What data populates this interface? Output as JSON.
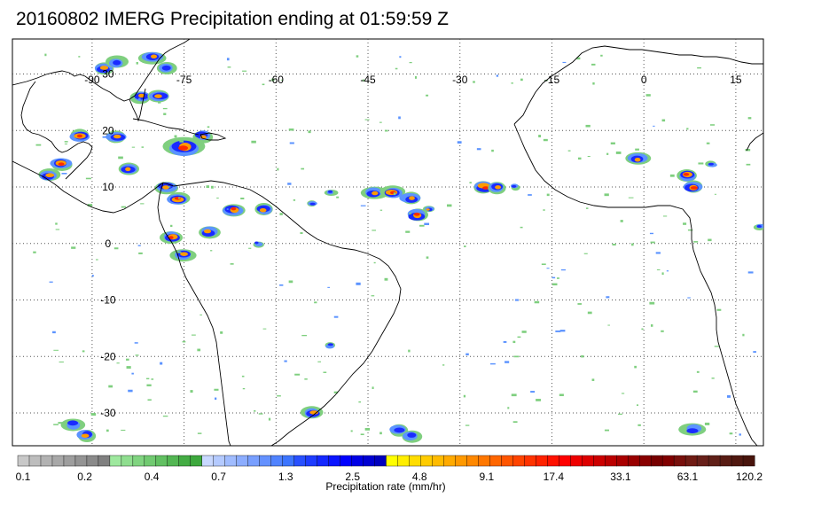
{
  "title": "20160802 IMERG Precipitation ending at 01:59:59 Z",
  "map": {
    "lon_ticks": [
      "-90",
      "-75",
      "-60",
      "-45",
      "-30",
      "-15",
      "0",
      "15"
    ],
    "lat_ticks": [
      "30",
      "20",
      "10",
      "0",
      "-10",
      "-20",
      "-30"
    ],
    "background": "#ffffff",
    "coast_color": "#000000",
    "grid_style": "dotted"
  },
  "colorbar": {
    "label": "Precipitation rate (mm/hr)",
    "tick_labels": [
      "0.1",
      "0.2",
      "0.4",
      "0.7",
      "1.3",
      "2.5",
      "4.8",
      "9.1",
      "17.4",
      "33.1",
      "63.1",
      "120.2"
    ],
    "colors": [
      "#c8c8c8",
      "#bdbdbd",
      "#b2b2b2",
      "#a8a8a8",
      "#9e9e9e",
      "#949494",
      "#8a8a8a",
      "#808080",
      "#9ee89e",
      "#8fde8f",
      "#80d480",
      "#71ca71",
      "#62c062",
      "#53b653",
      "#44ac44",
      "#3da83d",
      "#c8d8ff",
      "#b4caff",
      "#a0bcff",
      "#8cadff",
      "#789fff",
      "#6491ff",
      "#5083ff",
      "#3c75ff",
      "#2850ff",
      "#1e3cff",
      "#1428ff",
      "#0a14ff",
      "#0000ff",
      "#0000e6",
      "#0000d2",
      "#0000be",
      "#ffff00",
      "#ffee00",
      "#ffdd00",
      "#ffcc00",
      "#ffbb00",
      "#ffaa00",
      "#ff9900",
      "#ff8800",
      "#ff7700",
      "#ff6600",
      "#ff5500",
      "#ff4400",
      "#ff3300",
      "#ff2200",
      "#ff1100",
      "#ff0000",
      "#ee0000",
      "#dd0000",
      "#cc0000",
      "#bb0000",
      "#aa0000",
      "#990000",
      "#880000",
      "#770000",
      "#800000",
      "#78100c",
      "#701c14",
      "#68201a",
      "#602018",
      "#581c14",
      "#501810",
      "#48140c"
    ]
  },
  "precip_cells": [
    {
      "lon": -88,
      "lat": 31,
      "r": 2,
      "peak": 3
    },
    {
      "lon": -86,
      "lat": 32,
      "r": 2,
      "peak": 2
    },
    {
      "lon": -80,
      "lat": 33,
      "r": 2,
      "peak": 3
    },
    {
      "lon": -78,
      "lat": 31,
      "r": 2,
      "peak": 2
    },
    {
      "lon": -82,
      "lat": 26,
      "r": 2,
      "peak": 3
    },
    {
      "lon": -92,
      "lat": 19,
      "r": 2,
      "peak": 4
    },
    {
      "lon": -86,
      "lat": 19,
      "r": 2,
      "peak": 3
    },
    {
      "lon": -79,
      "lat": 26,
      "r": 2,
      "peak": 3
    },
    {
      "lon": -75,
      "lat": 17,
      "r": 3,
      "peak": 4
    },
    {
      "lon": -72,
      "lat": 19,
      "r": 2,
      "peak": 3
    },
    {
      "lon": -84,
      "lat": 13,
      "r": 2,
      "peak": 3
    },
    {
      "lon": -97,
      "lat": 12,
      "r": 2,
      "peak": 3
    },
    {
      "lon": -95,
      "lat": 14,
      "r": 2,
      "peak": 4
    },
    {
      "lon": -76,
      "lat": 8,
      "r": 2,
      "peak": 4
    },
    {
      "lon": -78,
      "lat": 10,
      "r": 2,
      "peak": 3
    },
    {
      "lon": -67,
      "lat": 6,
      "r": 2,
      "peak": 4
    },
    {
      "lon": -62,
      "lat": 6,
      "r": 2,
      "peak": 3
    },
    {
      "lon": -71,
      "lat": 2,
      "r": 2,
      "peak": 3
    },
    {
      "lon": -77,
      "lat": 1,
      "r": 2,
      "peak": 4
    },
    {
      "lon": -75,
      "lat": -2,
      "r": 2,
      "peak": 3
    },
    {
      "lon": -63,
      "lat": 0,
      "r": 1,
      "peak": 2
    },
    {
      "lon": -44,
      "lat": 9,
      "r": 2,
      "peak": 3
    },
    {
      "lon": -41,
      "lat": 9,
      "r": 2,
      "peak": 4
    },
    {
      "lon": -38,
      "lat": 8,
      "r": 2,
      "peak": 3
    },
    {
      "lon": -37,
      "lat": 5,
      "r": 2,
      "peak": 4
    },
    {
      "lon": -35,
      "lat": 6,
      "r": 1,
      "peak": 3
    },
    {
      "lon": -26,
      "lat": 10,
      "r": 2,
      "peak": 4
    },
    {
      "lon": -24,
      "lat": 10,
      "r": 2,
      "peak": 3
    },
    {
      "lon": -21,
      "lat": 10,
      "r": 1,
      "peak": 2
    },
    {
      "lon": -51,
      "lat": 9,
      "r": 1,
      "peak": 2
    },
    {
      "lon": -54,
      "lat": 7,
      "r": 1,
      "peak": 2
    },
    {
      "lon": -1,
      "lat": 15,
      "r": 2,
      "peak": 3
    },
    {
      "lon": 7,
      "lat": 12,
      "r": 2,
      "peak": 4
    },
    {
      "lon": 8,
      "lat": 10,
      "r": 2,
      "peak": 4
    },
    {
      "lon": 11,
      "lat": 14,
      "r": 1,
      "peak": 2
    },
    {
      "lon": 19,
      "lat": 3,
      "r": 1,
      "peak": 2
    },
    {
      "lon": -51,
      "lat": -18,
      "r": 1,
      "peak": 2
    },
    {
      "lon": -93,
      "lat": -32,
      "r": 2,
      "peak": 2
    },
    {
      "lon": -91,
      "lat": -34,
      "r": 2,
      "peak": 3
    },
    {
      "lon": -54,
      "lat": -30,
      "r": 2,
      "peak": 3
    },
    {
      "lon": -40,
      "lat": -33,
      "r": 2,
      "peak": 2
    },
    {
      "lon": -38,
      "lat": -34,
      "r": 2,
      "peak": 2
    },
    {
      "lon": 8,
      "lat": -33,
      "r": 2,
      "peak": 2
    }
  ]
}
